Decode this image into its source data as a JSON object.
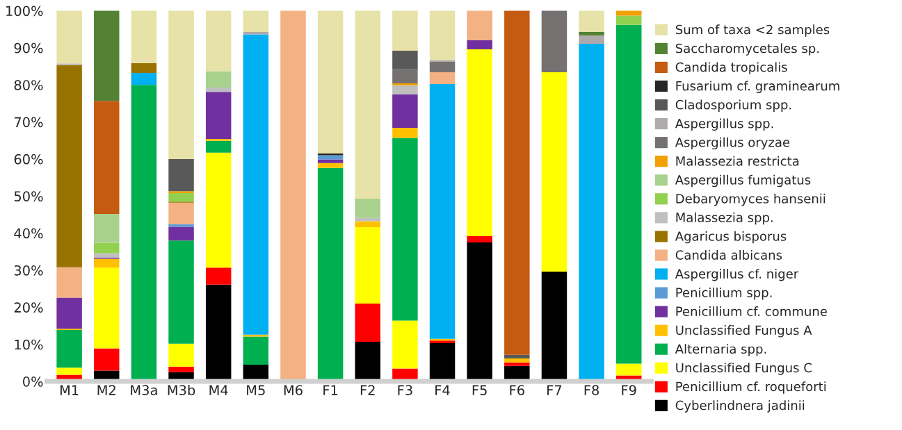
{
  "chart_data": {
    "type": "bar",
    "stacked": true,
    "categories": [
      "M1",
      "M2",
      "M3a",
      "M3b",
      "M4",
      "M5",
      "M6",
      "F1",
      "F2",
      "F3",
      "F4",
      "F5",
      "F6",
      "F7",
      "F8",
      "F9"
    ],
    "ylim": [
      0,
      100
    ],
    "yticks": [
      {
        "value": 0,
        "label": "0%"
      },
      {
        "value": 10,
        "label": "10%"
      },
      {
        "value": 20,
        "label": "20%"
      },
      {
        "value": 30,
        "label": "30%"
      },
      {
        "value": 40,
        "label": "40%"
      },
      {
        "value": 50,
        "label": "50%"
      },
      {
        "value": 60,
        "label": "60%"
      },
      {
        "value": 70,
        "label": "70%"
      },
      {
        "value": 80,
        "label": "80%"
      },
      {
        "value": 90,
        "label": "90%"
      },
      {
        "value": 100,
        "label": "100%"
      }
    ],
    "legend": "right",
    "grid": false,
    "series": [
      {
        "name": "Cyberlindnera jadinii",
        "color": "#000000",
        "values": [
          0,
          2.9,
          0,
          2.5,
          26.1,
          4.5,
          0,
          0,
          10.7,
          0,
          10.3,
          37.5,
          4.2,
          29.6,
          0,
          0
        ]
      },
      {
        "name": "Penicillium cf. roqueforti",
        "color": "#ff0000",
        "values": [
          1.8,
          6.0,
          0,
          1.5,
          4.6,
          0,
          0,
          0,
          10.3,
          3.5,
          0.7,
          1.7,
          0.9,
          0,
          0,
          1.6
        ]
      },
      {
        "name": "Unclassified Fungus C",
        "color": "#ffff00",
        "values": [
          1.9,
          21.8,
          0,
          6.2,
          31.0,
          0,
          0,
          0,
          20.6,
          12.9,
          0,
          50.4,
          0,
          53.8,
          0,
          3.2
        ]
      },
      {
        "name": "Alternaria spp.",
        "color": "#00b050",
        "values": [
          10.2,
          0,
          80.0,
          27.8,
          3.2,
          7.6,
          0,
          57.6,
          0,
          49.3,
          0,
          0,
          0,
          0,
          0,
          91.4
        ]
      },
      {
        "name": "Unclassified Fungus A",
        "color": "#ffc000",
        "values": [
          0.3,
          2.4,
          0,
          0,
          0.5,
          0.5,
          0,
          1.3,
          1.6,
          2.7,
          0.5,
          0,
          1.1,
          0,
          0,
          0
        ]
      },
      {
        "name": "Penicillium cf. commune",
        "color": "#7030a0",
        "values": [
          8.4,
          0.3,
          0,
          3.7,
          12.7,
          0,
          0,
          1.0,
          0,
          9.0,
          0,
          2.5,
          0,
          0,
          0,
          0
        ]
      },
      {
        "name": "Penicillium spp.",
        "color": "#5b9bd5",
        "values": [
          0,
          0,
          0,
          0.7,
          0,
          0,
          0,
          1.1,
          0,
          0,
          0,
          0,
          0,
          0,
          0,
          0
        ]
      },
      {
        "name": "Aspergillus cf. niger",
        "color": "#00b0f0",
        "values": [
          0,
          0,
          3.2,
          0,
          0,
          81.0,
          0,
          0,
          0,
          0,
          68.7,
          0,
          0,
          0,
          91.1,
          0
        ]
      },
      {
        "name": "Candida albicans",
        "color": "#f4b183",
        "values": [
          8.2,
          0,
          0,
          5.8,
          0,
          0,
          100,
          0,
          0,
          0,
          3.2,
          7.9,
          0,
          0,
          0,
          0
        ]
      },
      {
        "name": "Agaricus bisporus",
        "color": "#997300",
        "values": [
          54.6,
          0,
          2.7,
          0.3,
          0,
          0,
          0,
          0,
          0,
          0,
          0,
          0,
          0,
          0,
          0,
          0
        ]
      },
      {
        "name": "Malassezia spp.",
        "color": "#bfbfbf",
        "values": [
          0.4,
          1.2,
          0,
          0,
          1.2,
          0,
          0,
          0,
          0.9,
          2.5,
          0,
          0,
          0,
          0,
          0,
          0
        ]
      },
      {
        "name": "Debaryomyces hansenii",
        "color": "#92d050",
        "values": [
          0,
          2.8,
          0,
          2.3,
          0,
          0,
          0,
          0,
          0,
          0,
          0,
          0,
          0,
          0,
          0,
          2.5
        ]
      },
      {
        "name": "Aspergillus fumigatus",
        "color": "#a9d18e",
        "values": [
          0,
          7.8,
          0,
          0,
          4.4,
          0,
          0,
          0,
          5.2,
          0,
          0,
          0,
          0,
          0,
          0,
          0
        ]
      },
      {
        "name": "Malassezia restricta",
        "color": "#f0a000",
        "values": [
          0,
          0,
          0,
          0.5,
          0,
          0,
          0,
          0,
          0,
          0.5,
          0,
          0,
          0,
          0,
          0,
          1.3
        ]
      },
      {
        "name": "Aspergillus oryzae",
        "color": "#767171",
        "values": [
          0,
          0,
          0,
          0,
          0,
          0,
          0,
          0,
          0,
          3.8,
          2.8,
          0,
          0,
          16.6,
          0,
          0
        ]
      },
      {
        "name": "Aspergillus spp.",
        "color": "#aeaaaa",
        "values": [
          0,
          0,
          0,
          0,
          0,
          0.7,
          0,
          0,
          0,
          0,
          0.5,
          0,
          0,
          0,
          2.2,
          0
        ]
      },
      {
        "name": "Cladosporium spp.",
        "color": "#595959",
        "values": [
          0,
          0,
          0,
          8.7,
          0,
          0,
          0,
          0,
          0,
          5.0,
          0,
          0,
          1.0,
          0,
          0,
          0
        ]
      },
      {
        "name": "Fusarium cf. graminearum",
        "color": "#262626",
        "values": [
          0,
          0,
          0,
          0,
          0,
          0,
          0,
          0.5,
          0,
          0,
          0,
          0,
          0,
          0,
          0,
          0
        ]
      },
      {
        "name": "Candida tropicalis",
        "color": "#c55a11",
        "values": [
          0,
          30.5,
          0,
          0,
          0,
          0,
          0,
          0,
          0,
          0,
          0,
          0,
          92.8,
          0,
          0,
          0
        ]
      },
      {
        "name": "Saccharomycetales sp.",
        "color": "#548235",
        "values": [
          0,
          24.3,
          0,
          0,
          0,
          0,
          0,
          0,
          0,
          0,
          0,
          0,
          0,
          0,
          1.0,
          0
        ]
      },
      {
        "name": "Sum of taxa <2 samples",
        "color": "#e6e2a8",
        "values": [
          14.2,
          0,
          14.1,
          40.0,
          16.3,
          5.7,
          0,
          38.5,
          50.7,
          10.8,
          13.3,
          0,
          0,
          0,
          5.7,
          0
        ]
      }
    ]
  }
}
